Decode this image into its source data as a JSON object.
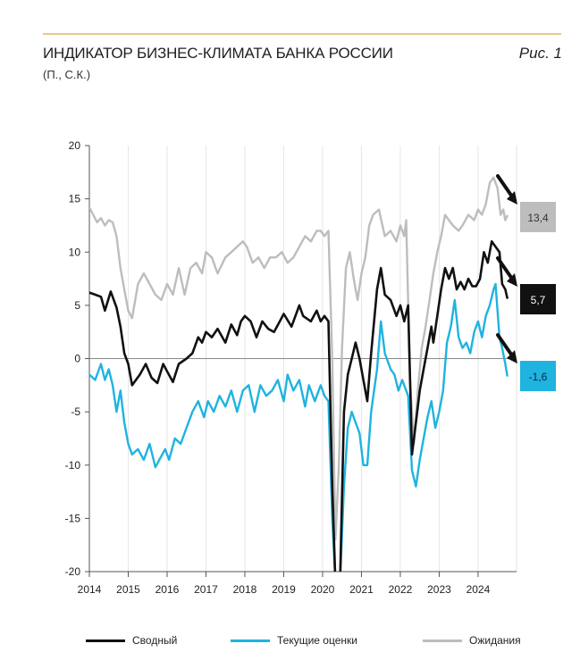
{
  "header": {
    "title": "ИНДИКАТОР БИЗНЕС-КЛИМАТА БАНКА РОССИИ",
    "figure_label": "Рис. 1",
    "units": "(П., С.К.)"
  },
  "colors": {
    "composite": "#111111",
    "current": "#1fb3e0",
    "expectations": "#bdbdbd",
    "grid": "#e6e6e6"
  },
  "chart_data": {
    "type": "line",
    "ylim": [
      -20,
      20
    ],
    "yticks": [
      20,
      15,
      10,
      5,
      0,
      -5,
      -10,
      -15,
      -20
    ],
    "xlim": [
      2014.0,
      2024.99
    ],
    "xticks": [
      "2014",
      "2015",
      "2016",
      "2017",
      "2018",
      "2019",
      "2020",
      "2021",
      "2022",
      "2023",
      "2024"
    ],
    "grid": "vertical",
    "legend_position": "bottom",
    "series": [
      {
        "name": "Сводный",
        "color": "#111111",
        "end_label": "5,7",
        "points": [
          [
            2014.0,
            6.2
          ],
          [
            2014.15,
            6.0
          ],
          [
            2014.3,
            5.8
          ],
          [
            2014.4,
            4.5
          ],
          [
            2014.55,
            6.3
          ],
          [
            2014.7,
            4.8
          ],
          [
            2014.8,
            3.0
          ],
          [
            2014.9,
            0.5
          ],
          [
            2015.0,
            -0.5
          ],
          [
            2015.1,
            -2.5
          ],
          [
            2015.3,
            -1.5
          ],
          [
            2015.45,
            -0.5
          ],
          [
            2015.6,
            -1.8
          ],
          [
            2015.75,
            -2.3
          ],
          [
            2015.9,
            -0.5
          ],
          [
            2016.0,
            -1.2
          ],
          [
            2016.15,
            -2.2
          ],
          [
            2016.3,
            -0.5
          ],
          [
            2016.5,
            0.0
          ],
          [
            2016.65,
            0.5
          ],
          [
            2016.8,
            2.0
          ],
          [
            2016.9,
            1.5
          ],
          [
            2017.0,
            2.5
          ],
          [
            2017.15,
            2.0
          ],
          [
            2017.3,
            2.8
          ],
          [
            2017.5,
            1.5
          ],
          [
            2017.65,
            3.2
          ],
          [
            2017.8,
            2.2
          ],
          [
            2017.9,
            3.5
          ],
          [
            2018.0,
            4.0
          ],
          [
            2018.15,
            3.5
          ],
          [
            2018.3,
            2.0
          ],
          [
            2018.45,
            3.5
          ],
          [
            2018.6,
            2.8
          ],
          [
            2018.75,
            2.5
          ],
          [
            2018.9,
            3.5
          ],
          [
            2019.0,
            4.2
          ],
          [
            2019.2,
            3.0
          ],
          [
            2019.4,
            5.0
          ],
          [
            2019.5,
            4.0
          ],
          [
            2019.7,
            3.5
          ],
          [
            2019.85,
            4.5
          ],
          [
            2019.95,
            3.5
          ],
          [
            2020.05,
            4.0
          ],
          [
            2020.15,
            3.5
          ],
          [
            2020.25,
            -12.0
          ],
          [
            2020.33,
            -21.0
          ],
          [
            2020.45,
            -21.0
          ],
          [
            2020.55,
            -5.0
          ],
          [
            2020.65,
            -1.5
          ],
          [
            2020.75,
            0.0
          ],
          [
            2020.85,
            1.5
          ],
          [
            2020.95,
            0.0
          ],
          [
            2021.05,
            -2.0
          ],
          [
            2021.15,
            -4.0
          ],
          [
            2021.25,
            0.5
          ],
          [
            2021.4,
            6.5
          ],
          [
            2021.5,
            8.5
          ],
          [
            2021.6,
            6.0
          ],
          [
            2021.75,
            5.5
          ],
          [
            2021.9,
            4.0
          ],
          [
            2022.0,
            5.0
          ],
          [
            2022.1,
            3.5
          ],
          [
            2022.2,
            5.0
          ],
          [
            2022.3,
            -9.0
          ],
          [
            2022.4,
            -6.0
          ],
          [
            2022.5,
            -3.0
          ],
          [
            2022.6,
            -1.0
          ],
          [
            2022.7,
            1.0
          ],
          [
            2022.8,
            3.0
          ],
          [
            2022.85,
            1.5
          ],
          [
            2022.95,
            4.0
          ],
          [
            2023.05,
            6.5
          ],
          [
            2023.15,
            8.5
          ],
          [
            2023.25,
            7.5
          ],
          [
            2023.35,
            8.5
          ],
          [
            2023.45,
            6.5
          ],
          [
            2023.55,
            7.2
          ],
          [
            2023.65,
            6.5
          ],
          [
            2023.75,
            7.5
          ],
          [
            2023.85,
            6.8
          ],
          [
            2023.95,
            6.8
          ],
          [
            2024.05,
            7.5
          ],
          [
            2024.15,
            10.0
          ],
          [
            2024.25,
            9.0
          ],
          [
            2024.35,
            11.0
          ],
          [
            2024.45,
            10.5
          ],
          [
            2024.55,
            10.0
          ],
          [
            2024.62,
            7.0
          ],
          [
            2024.7,
            6.5
          ],
          [
            2024.75,
            5.7
          ]
        ]
      },
      {
        "name": "Текущие оценки",
        "color": "#1fb3e0",
        "end_label": "-1,6",
        "points": [
          [
            2014.0,
            -1.5
          ],
          [
            2014.15,
            -2.0
          ],
          [
            2014.3,
            -0.5
          ],
          [
            2014.4,
            -2.0
          ],
          [
            2014.5,
            -1.0
          ],
          [
            2014.6,
            -2.5
          ],
          [
            2014.7,
            -5.0
          ],
          [
            2014.8,
            -3.0
          ],
          [
            2014.9,
            -6.0
          ],
          [
            2015.0,
            -8.0
          ],
          [
            2015.1,
            -9.0
          ],
          [
            2015.25,
            -8.5
          ],
          [
            2015.4,
            -9.5
          ],
          [
            2015.55,
            -8.0
          ],
          [
            2015.7,
            -10.2
          ],
          [
            2015.8,
            -9.5
          ],
          [
            2015.95,
            -8.5
          ],
          [
            2016.05,
            -9.5
          ],
          [
            2016.2,
            -7.5
          ],
          [
            2016.35,
            -8.0
          ],
          [
            2016.5,
            -6.5
          ],
          [
            2016.65,
            -5.0
          ],
          [
            2016.8,
            -4.0
          ],
          [
            2016.95,
            -5.5
          ],
          [
            2017.05,
            -4.0
          ],
          [
            2017.2,
            -5.0
          ],
          [
            2017.35,
            -3.5
          ],
          [
            2017.5,
            -4.5
          ],
          [
            2017.65,
            -3.0
          ],
          [
            2017.8,
            -5.0
          ],
          [
            2017.95,
            -3.0
          ],
          [
            2018.1,
            -2.5
          ],
          [
            2018.25,
            -5.0
          ],
          [
            2018.4,
            -2.5
          ],
          [
            2018.55,
            -3.5
          ],
          [
            2018.7,
            -3.0
          ],
          [
            2018.85,
            -2.0
          ],
          [
            2019.0,
            -4.0
          ],
          [
            2019.1,
            -1.5
          ],
          [
            2019.25,
            -3.0
          ],
          [
            2019.4,
            -2.0
          ],
          [
            2019.55,
            -4.5
          ],
          [
            2019.65,
            -2.5
          ],
          [
            2019.8,
            -4.0
          ],
          [
            2019.95,
            -2.5
          ],
          [
            2020.05,
            -3.5
          ],
          [
            2020.15,
            -4.0
          ],
          [
            2020.25,
            -15.0
          ],
          [
            2020.33,
            -21.0
          ],
          [
            2020.45,
            -21.0
          ],
          [
            2020.55,
            -12.0
          ],
          [
            2020.65,
            -6.5
          ],
          [
            2020.75,
            -5.0
          ],
          [
            2020.85,
            -6.0
          ],
          [
            2020.95,
            -7.0
          ],
          [
            2021.05,
            -10.0
          ],
          [
            2021.15,
            -10.0
          ],
          [
            2021.25,
            -5.0
          ],
          [
            2021.4,
            -1.0
          ],
          [
            2021.5,
            3.5
          ],
          [
            2021.6,
            0.5
          ],
          [
            2021.75,
            -1.0
          ],
          [
            2021.85,
            -1.5
          ],
          [
            2021.95,
            -3.0
          ],
          [
            2022.05,
            -2.0
          ],
          [
            2022.2,
            -3.5
          ],
          [
            2022.3,
            -10.5
          ],
          [
            2022.4,
            -12.0
          ],
          [
            2022.5,
            -9.5
          ],
          [
            2022.6,
            -7.5
          ],
          [
            2022.7,
            -5.5
          ],
          [
            2022.8,
            -4.0
          ],
          [
            2022.9,
            -6.5
          ],
          [
            2023.0,
            -5.0
          ],
          [
            2023.1,
            -3.0
          ],
          [
            2023.2,
            1.5
          ],
          [
            2023.3,
            3.0
          ],
          [
            2023.4,
            5.5
          ],
          [
            2023.5,
            2.0
          ],
          [
            2023.6,
            1.0
          ],
          [
            2023.7,
            1.5
          ],
          [
            2023.8,
            0.5
          ],
          [
            2023.9,
            2.5
          ],
          [
            2024.0,
            3.5
          ],
          [
            2024.1,
            2.0
          ],
          [
            2024.2,
            4.0
          ],
          [
            2024.3,
            5.0
          ],
          [
            2024.4,
            6.5
          ],
          [
            2024.45,
            7.0
          ],
          [
            2024.55,
            2.0
          ],
          [
            2024.62,
            1.0
          ],
          [
            2024.7,
            -0.5
          ],
          [
            2024.75,
            -1.6
          ]
        ]
      },
      {
        "name": "Ожидания",
        "color": "#bdbdbd",
        "end_label": "13,4",
        "points": [
          [
            2014.0,
            14.2
          ],
          [
            2014.1,
            13.5
          ],
          [
            2014.2,
            12.8
          ],
          [
            2014.3,
            13.2
          ],
          [
            2014.4,
            12.5
          ],
          [
            2014.5,
            13.0
          ],
          [
            2014.6,
            12.8
          ],
          [
            2014.7,
            11.5
          ],
          [
            2014.8,
            8.5
          ],
          [
            2014.9,
            6.5
          ],
          [
            2015.0,
            4.5
          ],
          [
            2015.1,
            3.8
          ],
          [
            2015.25,
            7.0
          ],
          [
            2015.4,
            8.0
          ],
          [
            2015.55,
            7.0
          ],
          [
            2015.7,
            6.0
          ],
          [
            2015.85,
            5.5
          ],
          [
            2016.0,
            7.0
          ],
          [
            2016.15,
            6.0
          ],
          [
            2016.3,
            8.5
          ],
          [
            2016.45,
            6.0
          ],
          [
            2016.6,
            8.5
          ],
          [
            2016.75,
            9.0
          ],
          [
            2016.9,
            8.0
          ],
          [
            2017.0,
            10.0
          ],
          [
            2017.15,
            9.5
          ],
          [
            2017.3,
            8.0
          ],
          [
            2017.5,
            9.5
          ],
          [
            2017.65,
            10.0
          ],
          [
            2017.8,
            10.5
          ],
          [
            2017.95,
            11.0
          ],
          [
            2018.05,
            10.5
          ],
          [
            2018.2,
            9.0
          ],
          [
            2018.35,
            9.5
          ],
          [
            2018.5,
            8.5
          ],
          [
            2018.65,
            9.5
          ],
          [
            2018.8,
            9.5
          ],
          [
            2018.95,
            10.0
          ],
          [
            2019.1,
            9.0
          ],
          [
            2019.25,
            9.5
          ],
          [
            2019.4,
            10.5
          ],
          [
            2019.55,
            11.5
          ],
          [
            2019.7,
            11.0
          ],
          [
            2019.85,
            12.0
          ],
          [
            2019.95,
            12.0
          ],
          [
            2020.05,
            11.5
          ],
          [
            2020.15,
            12.0
          ],
          [
            2020.25,
            0.0
          ],
          [
            2020.33,
            -17.0
          ],
          [
            2020.42,
            -10.0
          ],
          [
            2020.5,
            1.0
          ],
          [
            2020.6,
            8.5
          ],
          [
            2020.7,
            10.0
          ],
          [
            2020.8,
            7.5
          ],
          [
            2020.9,
            5.5
          ],
          [
            2021.0,
            8.0
          ],
          [
            2021.1,
            9.5
          ],
          [
            2021.2,
            12.5
          ],
          [
            2021.3,
            13.5
          ],
          [
            2021.45,
            14.0
          ],
          [
            2021.6,
            11.5
          ],
          [
            2021.75,
            12.0
          ],
          [
            2021.9,
            11.0
          ],
          [
            2022.0,
            12.5
          ],
          [
            2022.1,
            11.5
          ],
          [
            2022.15,
            13.0
          ],
          [
            2022.25,
            -2.0
          ],
          [
            2022.35,
            -8.0
          ],
          [
            2022.45,
            -3.0
          ],
          [
            2022.55,
            1.0
          ],
          [
            2022.65,
            3.0
          ],
          [
            2022.75,
            5.5
          ],
          [
            2022.85,
            8.0
          ],
          [
            2022.95,
            10.0
          ],
          [
            2023.05,
            11.5
          ],
          [
            2023.15,
            13.5
          ],
          [
            2023.25,
            13.0
          ],
          [
            2023.35,
            12.5
          ],
          [
            2023.5,
            12.0
          ],
          [
            2023.6,
            12.5
          ],
          [
            2023.75,
            13.5
          ],
          [
            2023.9,
            13.0
          ],
          [
            2024.0,
            14.0
          ],
          [
            2024.1,
            13.5
          ],
          [
            2024.2,
            14.5
          ],
          [
            2024.3,
            16.5
          ],
          [
            2024.4,
            17.0
          ],
          [
            2024.5,
            16.0
          ],
          [
            2024.58,
            13.5
          ],
          [
            2024.65,
            14.0
          ],
          [
            2024.7,
            13.0
          ],
          [
            2024.75,
            13.4
          ]
        ]
      }
    ]
  }
}
